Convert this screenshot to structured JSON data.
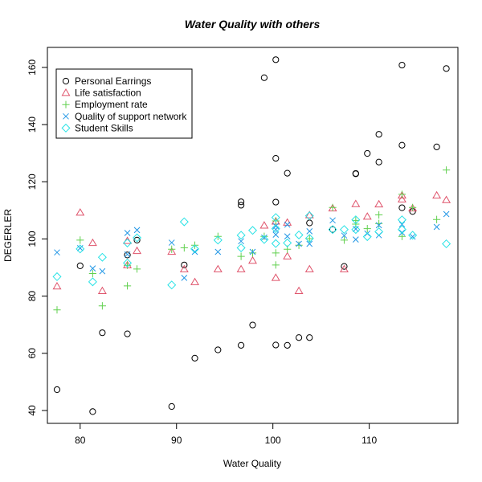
{
  "chart_data": {
    "type": "scatter",
    "title": "Water Quality with others",
    "xlabel": "Water Quality",
    "ylabel": "DEGERLER",
    "xlim": [
      76.6,
      119.2
    ],
    "ylim": [
      35.5,
      167.0
    ],
    "xticks": [
      80,
      90,
      100,
      110
    ],
    "yticks": [
      40,
      60,
      80,
      100,
      120,
      140,
      160
    ],
    "grid": false,
    "legend_position": "top-left",
    "series": [
      {
        "name": "Personal Earrings",
        "marker": "circle",
        "color": "#000000",
        "points": [
          [
            77.6,
            47.3
          ],
          [
            80.0,
            90.6
          ],
          [
            81.3,
            39.6
          ],
          [
            82.3,
            67.2
          ],
          [
            84.9,
            66.8
          ],
          [
            84.9,
            94.4
          ],
          [
            85.9,
            99.6
          ],
          [
            89.5,
            41.4
          ],
          [
            90.8,
            90.9
          ],
          [
            91.9,
            58.3
          ],
          [
            94.3,
            61.2
          ],
          [
            96.7,
            113.0
          ],
          [
            96.7,
            111.8
          ],
          [
            96.7,
            62.8
          ],
          [
            97.9,
            69.9
          ],
          [
            99.1,
            156.4
          ],
          [
            100.3,
            162.7
          ],
          [
            100.3,
            128.2
          ],
          [
            100.3,
            112.9
          ],
          [
            100.3,
            62.9
          ],
          [
            101.5,
            123.0
          ],
          [
            101.5,
            62.8
          ],
          [
            102.7,
            65.5
          ],
          [
            103.8,
            65.5
          ],
          [
            103.8,
            105.6
          ],
          [
            106.2,
            103.3
          ],
          [
            107.4,
            90.4
          ],
          [
            108.6,
            122.8
          ],
          [
            108.6,
            122.9
          ],
          [
            109.8,
            129.9
          ],
          [
            111.0,
            136.6
          ],
          [
            111.0,
            126.9
          ],
          [
            113.4,
            160.8
          ],
          [
            113.4,
            132.8
          ],
          [
            113.4,
            110.9
          ],
          [
            114.5,
            109.6
          ],
          [
            117.0,
            132.2
          ],
          [
            118.0,
            159.6
          ]
        ]
      },
      {
        "name": "Life satisfaction",
        "marker": "triangle",
        "color": "#DF536B",
        "points": [
          [
            77.6,
            83.4
          ],
          [
            80.0,
            109.2
          ],
          [
            81.3,
            98.6
          ],
          [
            82.3,
            81.8
          ],
          [
            84.9,
            99.3
          ],
          [
            84.9,
            90.8
          ],
          [
            85.9,
            95.8
          ],
          [
            89.5,
            95.5
          ],
          [
            90.8,
            89.4
          ],
          [
            91.9,
            84.9
          ],
          [
            94.3,
            89.4
          ],
          [
            96.7,
            89.4
          ],
          [
            97.9,
            92.4
          ],
          [
            99.1,
            104.7
          ],
          [
            100.3,
            86.4
          ],
          [
            100.3,
            106.1
          ],
          [
            101.5,
            93.9
          ],
          [
            101.5,
            105.7
          ],
          [
            102.7,
            81.8
          ],
          [
            103.8,
            89.4
          ],
          [
            103.8,
            108.3
          ],
          [
            106.2,
            110.7
          ],
          [
            107.4,
            89.4
          ],
          [
            108.6,
            112.2
          ],
          [
            109.8,
            107.8
          ],
          [
            111.0,
            112.1
          ],
          [
            113.4,
            113.8
          ],
          [
            113.4,
            115.2
          ],
          [
            114.5,
            110.7
          ],
          [
            117.0,
            115.2
          ],
          [
            118.0,
            113.6
          ]
        ]
      },
      {
        "name": "Employment rate",
        "marker": "plus",
        "color": "#61D04F",
        "points": [
          [
            77.6,
            75.2
          ],
          [
            80.0,
            99.6
          ],
          [
            81.3,
            87.9
          ],
          [
            82.3,
            76.6
          ],
          [
            84.9,
            83.6
          ],
          [
            84.9,
            90.8
          ],
          [
            85.9,
            89.5
          ],
          [
            89.5,
            96.4
          ],
          [
            90.8,
            96.9
          ],
          [
            91.9,
            97.8
          ],
          [
            94.3,
            100.9
          ],
          [
            96.7,
            93.9
          ],
          [
            97.9,
            95.1
          ],
          [
            99.1,
            100.9
          ],
          [
            100.3,
            90.9
          ],
          [
            100.3,
            95.1
          ],
          [
            100.3,
            106.3
          ],
          [
            101.5,
            96.4
          ],
          [
            102.7,
            97.8
          ],
          [
            103.8,
            100.1
          ],
          [
            106.2,
            111.0
          ],
          [
            107.4,
            99.6
          ],
          [
            108.6,
            105.2
          ],
          [
            108.6,
            106.5
          ],
          [
            109.8,
            103.6
          ],
          [
            111.0,
            105.4
          ],
          [
            111.0,
            108.4
          ],
          [
            113.4,
            100.9
          ],
          [
            113.4,
            115.6
          ],
          [
            114.5,
            111.0
          ],
          [
            117.0,
            106.8
          ],
          [
            118.0,
            124.1
          ]
        ]
      },
      {
        "name": "Quality of support network",
        "marker": "cross",
        "color": "#2297E6",
        "points": [
          [
            77.6,
            95.3
          ],
          [
            80.0,
            96.8
          ],
          [
            81.3,
            89.7
          ],
          [
            82.3,
            88.7
          ],
          [
            84.9,
            102.1
          ],
          [
            84.9,
            94.6
          ],
          [
            85.9,
            103.1
          ],
          [
            89.5,
            98.7
          ],
          [
            90.8,
            86.4
          ],
          [
            91.9,
            95.5
          ],
          [
            94.3,
            95.5
          ],
          [
            96.7,
            99.2
          ],
          [
            97.9,
            95.5
          ],
          [
            99.1,
            100.5
          ],
          [
            100.3,
            103.3
          ],
          [
            100.3,
            104.5
          ],
          [
            100.3,
            101.5
          ],
          [
            101.5,
            100.9
          ],
          [
            101.5,
            105.0
          ],
          [
            102.7,
            98.3
          ],
          [
            103.8,
            98.3
          ],
          [
            103.8,
            102.7
          ],
          [
            106.2,
            106.5
          ],
          [
            107.4,
            101.2
          ],
          [
            108.6,
            103.5
          ],
          [
            108.6,
            99.8
          ],
          [
            109.8,
            101.9
          ],
          [
            111.0,
            101.3
          ],
          [
            111.0,
            104.8
          ],
          [
            113.4,
            105.1
          ],
          [
            113.4,
            102.2
          ],
          [
            114.5,
            100.8
          ],
          [
            117.0,
            104.2
          ],
          [
            118.0,
            108.7
          ]
        ]
      },
      {
        "name": "Student Skills",
        "marker": "diamond",
        "color": "#28E2E5",
        "points": [
          [
            77.6,
            86.8
          ],
          [
            80.0,
            96.5
          ],
          [
            81.3,
            85.0
          ],
          [
            82.3,
            93.6
          ],
          [
            84.9,
            98.6
          ],
          [
            84.9,
            91.6
          ],
          [
            85.9,
            100.4
          ],
          [
            89.5,
            83.9
          ],
          [
            90.8,
            106.0
          ],
          [
            91.9,
            96.5
          ],
          [
            94.3,
            99.6
          ],
          [
            96.7,
            96.9
          ],
          [
            96.7,
            101.3
          ],
          [
            97.9,
            103.0
          ],
          [
            99.1,
            99.8
          ],
          [
            100.3,
            98.4
          ],
          [
            100.3,
            107.5
          ],
          [
            100.3,
            103.6
          ],
          [
            101.5,
            98.6
          ],
          [
            102.7,
            101.4
          ],
          [
            103.8,
            108.1
          ],
          [
            103.8,
            100.2
          ],
          [
            106.2,
            103.3
          ],
          [
            107.4,
            103.3
          ],
          [
            108.6,
            103.3
          ],
          [
            108.6,
            106.7
          ],
          [
            109.8,
            100.8
          ],
          [
            111.0,
            102.5
          ],
          [
            113.4,
            106.7
          ],
          [
            113.4,
            103.3
          ],
          [
            114.5,
            101.3
          ],
          [
            118.0,
            98.3
          ]
        ]
      }
    ]
  }
}
